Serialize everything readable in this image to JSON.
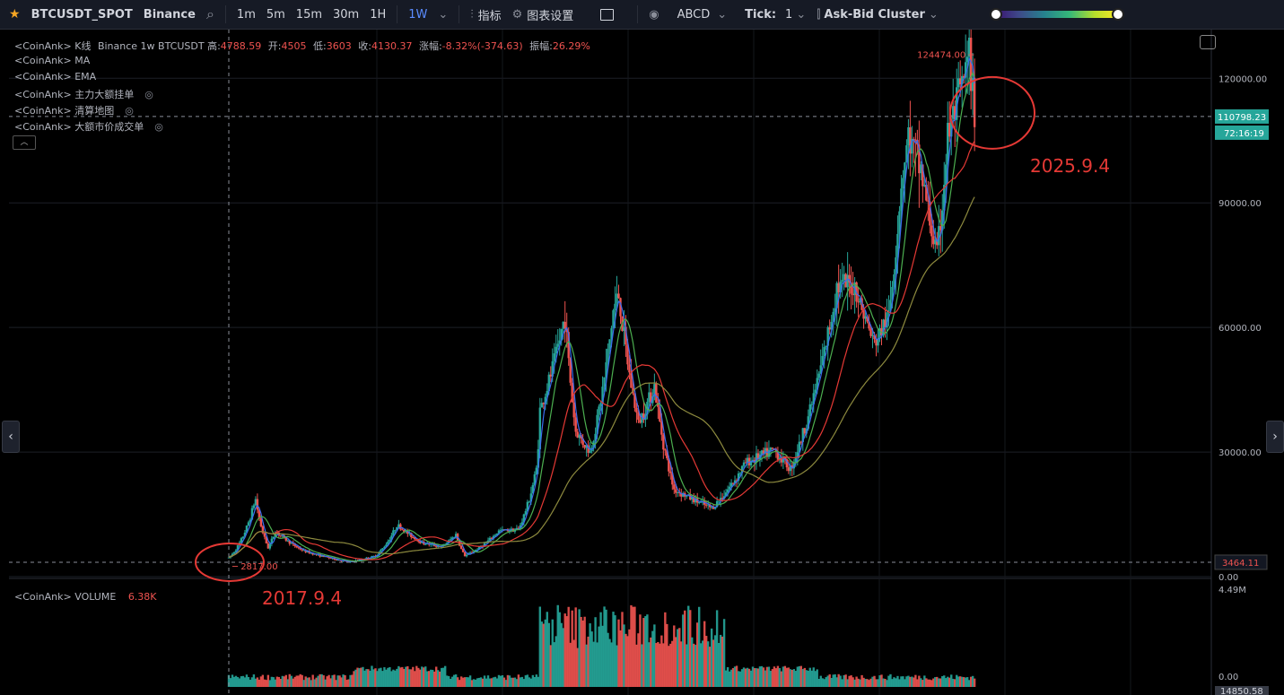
{
  "toolbar": {
    "symbol": "BTCUSDT_SPOT",
    "exchange": "Binance",
    "intervals": [
      "1m",
      "5m",
      "15m",
      "30m",
      "1H",
      "1W"
    ],
    "active_interval": "1W",
    "indicators_label": "指标",
    "chart_settings_label": "图表设置",
    "drawing_label": "ABCD",
    "tick_label": "Tick:",
    "tick_value": "1",
    "cluster_label": "Ask-Bid Cluster"
  },
  "legend": {
    "kline_prefix": "<CoinAnk> K线",
    "kline_desc": "Binance 1w BTCUSDT",
    "high_label": "高:",
    "high": "4788.59",
    "open_label": "开:",
    "open": "4505",
    "low_label": "低:",
    "low": "3603",
    "close_label": "收:",
    "close": "4130.37",
    "change_label": "涨幅:",
    "change": "-8.32%(-374.63)",
    "amp_label": "振幅:",
    "amp": "26.29%",
    "ma": "<CoinAnk> MA",
    "ema": "<CoinAnk> EMA",
    "big_orders": "<CoinAnk> 主力大额挂单",
    "liq_map": "<CoinAnk> 清算地图",
    "big_trades": "<CoinAnk> 大额市价成交单",
    "volume": "<CoinAnk> VOLUME",
    "volume_value": "6.38K"
  },
  "price_axis": {
    "ticks": [
      "120000.00",
      "90000.00",
      "60000.00",
      "30000.00",
      "0.00"
    ],
    "current_price": "110798.23",
    "countdown": "72:16:19",
    "low_marker": "3464.11"
  },
  "volume_axis": {
    "top": "4.49M",
    "bottom": "0.00",
    "cursor": "14850.58"
  },
  "labels": {
    "high_price": "124474.00",
    "low_price": "2817.00",
    "start_annotation": "2017.9.4",
    "end_annotation": "2025.9.4"
  },
  "colors": {
    "up": "#26a69a",
    "down": "#ef5350",
    "current": "#26a69a",
    "annotation": "#e53935"
  },
  "chart_data": {
    "type": "candlestick",
    "x_start": "2017-09-04",
    "x_end": "2025-09-04",
    "interval": "1w",
    "ylim": [
      0,
      130000
    ],
    "grid": true,
    "reference_lines": [
      {
        "label": "current",
        "value": 110798.23
      },
      {
        "label": "low",
        "value": 3464.11
      }
    ],
    "price_path": [
      [
        "2017-09-04",
        4500
      ],
      [
        "2017-12-17",
        19000
      ],
      [
        "2018-02-05",
        7000
      ],
      [
        "2018-03-05",
        11000
      ],
      [
        "2018-06-25",
        6200
      ],
      [
        "2018-11-26",
        3800
      ],
      [
        "2018-12-17",
        3500
      ],
      [
        "2019-04-01",
        5000
      ],
      [
        "2019-06-24",
        12500
      ],
      [
        "2019-09-30",
        8200
      ],
      [
        "2019-12-16",
        7200
      ],
      [
        "2020-02-10",
        10200
      ],
      [
        "2020-03-16",
        5000
      ],
      [
        "2020-07-27",
        11000
      ],
      [
        "2020-10-12",
        11500
      ],
      [
        "2020-12-21",
        26000
      ],
      [
        "2021-01-04",
        40000
      ],
      [
        "2021-04-12",
        63000
      ],
      [
        "2021-05-24",
        35000
      ],
      [
        "2021-07-19",
        30000
      ],
      [
        "2021-10-18",
        64000
      ],
      [
        "2021-11-08",
        68000
      ],
      [
        "2022-01-24",
        37000
      ],
      [
        "2022-03-28",
        46000
      ],
      [
        "2022-06-13",
        21000
      ],
      [
        "2022-11-07",
        16500
      ],
      [
        "2023-03-20",
        27500
      ],
      [
        "2023-07-10",
        30500
      ],
      [
        "2023-09-11",
        26000
      ],
      [
        "2023-12-04",
        42000
      ],
      [
        "2024-03-11",
        70000
      ],
      [
        "2024-05-20",
        70000
      ],
      [
        "2024-08-05",
        56000
      ],
      [
        "2024-09-30",
        63000
      ],
      [
        "2024-11-18",
        95000
      ],
      [
        "2024-12-16",
        106000
      ],
      [
        "2025-02-03",
        98000
      ],
      [
        "2025-04-07",
        77000
      ],
      [
        "2025-05-19",
        106000
      ],
      [
        "2025-08-11",
        124474
      ],
      [
        "2025-09-04",
        110798
      ]
    ],
    "ma_series": [
      {
        "color": "#3b6cf0",
        "period": 4
      },
      {
        "color": "#4caf50",
        "period": 10
      },
      {
        "color": "#e53935",
        "period": 26
      },
      {
        "color": "#8d8a3e",
        "period": 60
      }
    ],
    "volume": {
      "ylim": [
        0,
        4490000
      ],
      "peak_note": "heaviest 2021-2022"
    }
  }
}
